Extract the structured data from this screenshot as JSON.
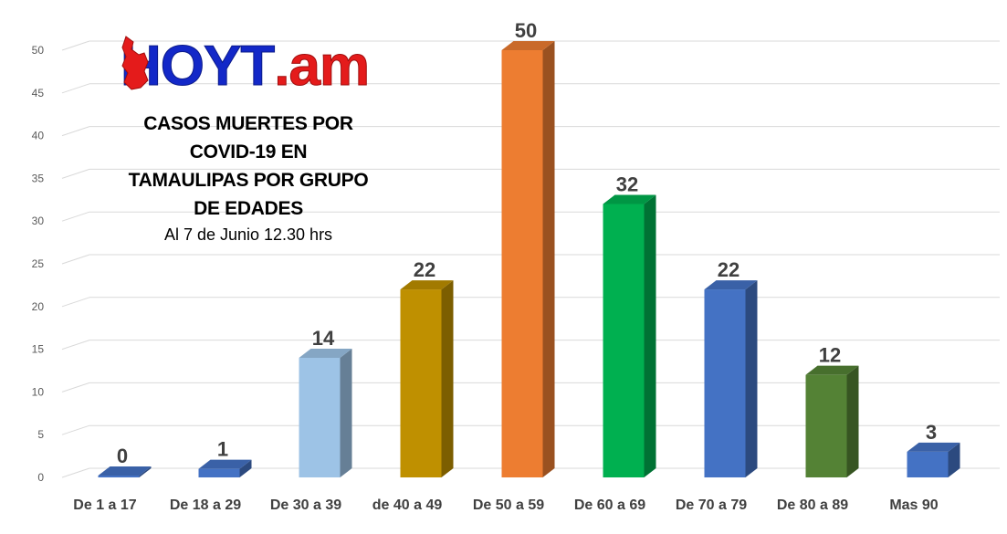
{
  "logo": {
    "part_blue": "HOYT",
    "part_red": ".am"
  },
  "title_lines": [
    "CASOS MUERTES POR",
    "COVID-19 EN",
    "TAMAULIPAS POR GRUPO",
    "DE EDADES"
  ],
  "subtitle": "Al 7 de Junio 12.30 hrs",
  "chart_data": {
    "type": "bar",
    "title": "CASOS MUERTES POR COVID-19 EN TAMAULIPAS POR GRUPO DE EDADES",
    "subtitle": "Al 7 de Junio 12.30 hrs",
    "categories": [
      "De 1 a 17",
      "De 18 a 29",
      "De 30 a 39",
      "de 40 a 49",
      "De 50 a 59",
      "De 60 a 69",
      "De 70 a 79",
      "De 80 a 89",
      "Mas 90"
    ],
    "values": [
      0,
      1,
      14,
      22,
      50,
      32,
      22,
      12,
      3
    ],
    "colors": [
      "#4472c4",
      "#4472c4",
      "#9dc3e6",
      "#bf9000",
      "#ed7d31",
      "#00b050",
      "#4472c4",
      "#548235",
      "#4472c4"
    ],
    "ylim": [
      0,
      50
    ],
    "yticks": [
      0,
      5,
      10,
      15,
      20,
      25,
      30,
      35,
      40,
      45,
      50
    ],
    "grid": true,
    "data_labels": true,
    "style": "3d-column",
    "xlabel": "",
    "ylabel": ""
  }
}
